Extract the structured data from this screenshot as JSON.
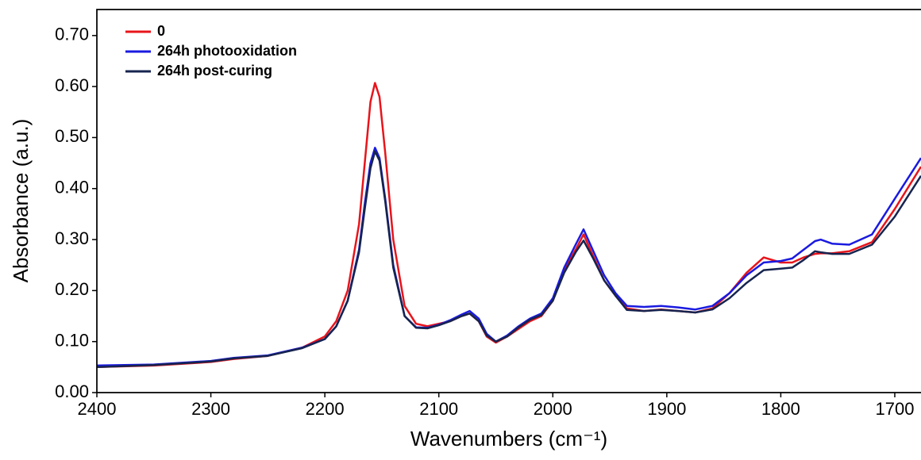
{
  "chart_data": {
    "type": "line",
    "x_label": "Wavenumbers (cm⁻¹)",
    "y_label": "Absorbance (a.u.)",
    "x": [
      2400,
      2350,
      2300,
      2280,
      2250,
      2220,
      2200,
      2190,
      2180,
      2170,
      2165,
      2160,
      2156,
      2152,
      2147,
      2140,
      2130,
      2120,
      2110,
      2100,
      2090,
      2080,
      2073,
      2065,
      2058,
      2050,
      2040,
      2030,
      2020,
      2010,
      2000,
      1990,
      1980,
      1973,
      1965,
      1955,
      1945,
      1935,
      1920,
      1905,
      1890,
      1875,
      1860,
      1845,
      1830,
      1815,
      1800,
      1790,
      1780,
      1770,
      1765,
      1755,
      1740,
      1720,
      1700,
      1677
    ],
    "series": [
      {
        "name": "0",
        "color": "#e8141b",
        "values": [
          0.05,
          0.053,
          0.06,
          0.066,
          0.072,
          0.088,
          0.11,
          0.14,
          0.2,
          0.33,
          0.45,
          0.57,
          0.607,
          0.58,
          0.47,
          0.3,
          0.17,
          0.135,
          0.13,
          0.135,
          0.14,
          0.15,
          0.155,
          0.14,
          0.11,
          0.098,
          0.11,
          0.125,
          0.14,
          0.15,
          0.18,
          0.24,
          0.28,
          0.31,
          0.27,
          0.22,
          0.19,
          0.165,
          0.16,
          0.163,
          0.16,
          0.157,
          0.165,
          0.195,
          0.235,
          0.265,
          0.255,
          0.255,
          0.265,
          0.272,
          0.273,
          0.273,
          0.277,
          0.295,
          0.36,
          0.443
        ]
      },
      {
        "name": "264h photooxidation",
        "color": "#1a1ae0",
        "values": [
          0.053,
          0.055,
          0.062,
          0.068,
          0.073,
          0.088,
          0.105,
          0.13,
          0.18,
          0.28,
          0.37,
          0.45,
          0.48,
          0.46,
          0.38,
          0.25,
          0.15,
          0.128,
          0.127,
          0.133,
          0.142,
          0.153,
          0.16,
          0.145,
          0.115,
          0.1,
          0.112,
          0.13,
          0.145,
          0.155,
          0.185,
          0.245,
          0.29,
          0.32,
          0.28,
          0.23,
          0.195,
          0.17,
          0.168,
          0.17,
          0.167,
          0.163,
          0.17,
          0.195,
          0.23,
          0.255,
          0.258,
          0.263,
          0.28,
          0.297,
          0.3,
          0.292,
          0.29,
          0.31,
          0.38,
          0.46
        ]
      },
      {
        "name": "264h post-curing",
        "color": "#16244f",
        "values": [
          0.05,
          0.054,
          0.061,
          0.067,
          0.072,
          0.087,
          0.105,
          0.13,
          0.18,
          0.275,
          0.36,
          0.44,
          0.473,
          0.455,
          0.375,
          0.245,
          0.15,
          0.127,
          0.126,
          0.132,
          0.14,
          0.15,
          0.155,
          0.14,
          0.112,
          0.1,
          0.11,
          0.128,
          0.143,
          0.152,
          0.18,
          0.235,
          0.275,
          0.298,
          0.265,
          0.22,
          0.19,
          0.162,
          0.16,
          0.162,
          0.16,
          0.157,
          0.163,
          0.185,
          0.215,
          0.24,
          0.243,
          0.245,
          0.26,
          0.277,
          0.275,
          0.272,
          0.272,
          0.29,
          0.345,
          0.425
        ]
      }
    ],
    "xlim": [
      2400,
      1677
    ],
    "xticks": [
      2400,
      2300,
      2200,
      2100,
      2000,
      1900,
      1800,
      1700
    ],
    "ylim": [
      0,
      0.751
    ],
    "yticks": [
      {
        "value": 0,
        "label": "0.00"
      },
      {
        "value": 0.1,
        "label": "0.10"
      },
      {
        "value": 0.2,
        "label": "0.20"
      },
      {
        "value": 0.3,
        "label": "0.30"
      },
      {
        "value": 0.4,
        "label": "0.40"
      },
      {
        "value": 0.5,
        "label": "0.50"
      },
      {
        "value": 0.6,
        "label": "0.60"
      },
      {
        "value": 0.7,
        "label": "0.70"
      }
    ],
    "legend": "upper left"
  }
}
